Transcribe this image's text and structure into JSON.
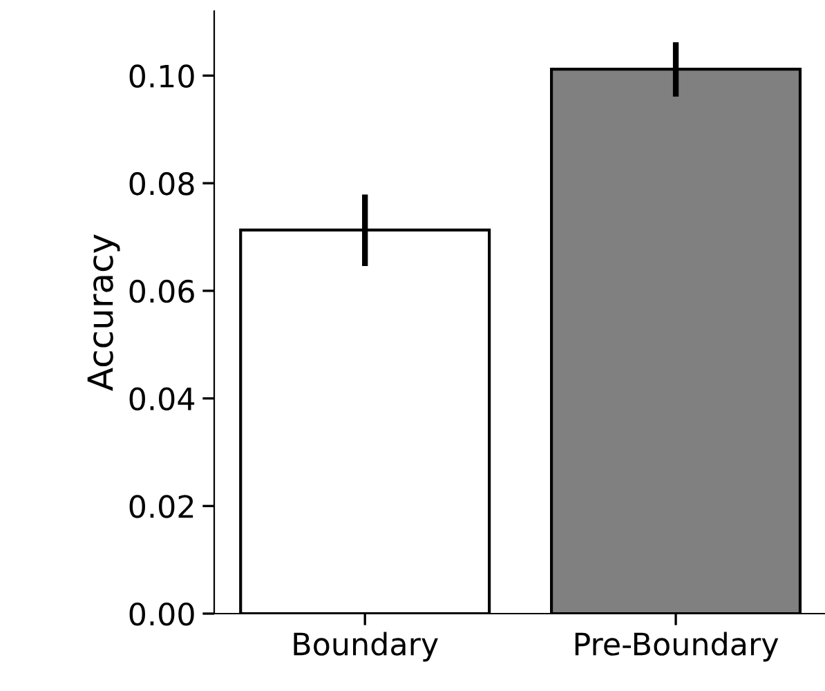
{
  "chart_data": {
    "type": "bar",
    "ylabel": "Accuracy",
    "categories": [
      "Boundary",
      "Pre-Boundary"
    ],
    "values": [
      0.0713,
      0.1012
    ],
    "colors": [
      "#ffffff",
      "#808080"
    ],
    "errors": [
      [
        0.0646,
        0.0779
      ],
      [
        0.0961,
        0.1062
      ]
    ],
    "ylim": [
      0,
      0.112
    ],
    "yticks": [
      {
        "value": 0,
        "label": "0.00"
      },
      {
        "value": 0.02,
        "label": "0.02"
      },
      {
        "value": 0.04,
        "label": "0.04"
      },
      {
        "value": 0.06,
        "label": "0.06"
      },
      {
        "value": 0.08,
        "label": "0.08"
      },
      {
        "value": 0.1,
        "label": "0.10"
      }
    ],
    "grid": false,
    "legend": false
  }
}
